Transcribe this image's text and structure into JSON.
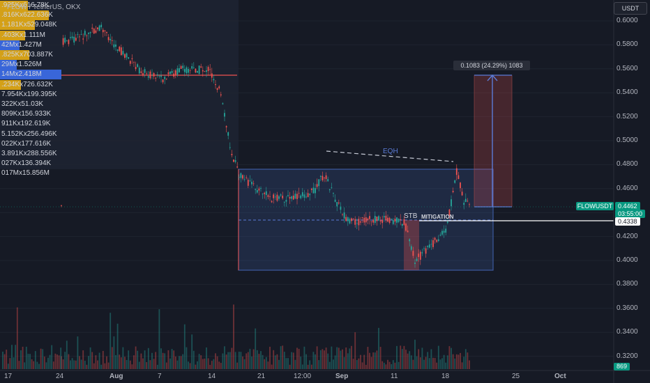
{
  "header": {
    "pair_label": "FLOW / TetherUS, OKX",
    "currency_button": "USDT"
  },
  "volume_profile": [
    {
      "text": ".925Kx616.78K",
      "color": "#d4a017"
    },
    {
      "text": ".816Kx622.636K",
      "color": "#d4a017"
    },
    {
      "text": "1.181Kx529.048K",
      "color": "#d4a017"
    },
    {
      "text": ".403Kx1.111M",
      "color": "#d4a017"
    },
    {
      "text": "42Mx1.427M",
      "color": "#3966d9"
    },
    {
      "text": ".825Kx703.887K",
      "color": "#d4a017"
    },
    {
      "text": "29Mx1.526M",
      "color": "#3966d9"
    },
    {
      "text": "14Mx2.418M",
      "color": "#3966d9"
    },
    {
      "text": ".234Kx726.632K",
      "color": "#d4a017"
    },
    {
      "text": "7.954Kx199.395K",
      "color": "#2a2e39"
    },
    {
      "text": "322Kx51.03K",
      "color": "#2a2e39"
    },
    {
      "text": "809Kx156.933K",
      "color": "#2a2e39"
    },
    {
      "text": "911Kx192.619K",
      "color": "#2a2e39"
    },
    {
      "text": "5.152Kx256.496K",
      "color": "#2a2e39"
    },
    {
      "text": "022Kx177.616K",
      "color": "#2a2e39"
    },
    {
      "text": "3.891Kx288.556K",
      "color": "#2a2e39"
    },
    {
      "text": "027Kx136.394K",
      "color": "#2a2e39"
    },
    {
      "text": "017Mx15.856M",
      "color": "#2a2e39"
    }
  ],
  "price_axis": {
    "ticks": [
      "0.6000",
      "0.5800",
      "0.5600",
      "0.5400",
      "0.5200",
      "0.5000",
      "0.4800",
      "0.4600",
      "0.4400",
      "0.4200",
      "0.4000",
      "0.3800",
      "0.3600",
      "0.3400",
      "0.3200"
    ],
    "last_price": "0.4462",
    "countdown": "03:55:00",
    "level_price": "0.4338",
    "symbol_tag": "FLOWUSDT",
    "volume_value": "869"
  },
  "time_axis": {
    "ticks": [
      "17",
      "24",
      "Aug",
      "7",
      "14",
      "21",
      "12:00",
      "Sep",
      "11",
      "18",
      "25",
      "Oct"
    ]
  },
  "annotations": {
    "measure": "0.1083 (24.29%) 1083",
    "eqh": "EQH",
    "stb": "STB",
    "mitigation": "MITIGATION"
  },
  "colors": {
    "background": "#161a25",
    "up": "#26a69a",
    "down": "#ef5350",
    "range_box": "#3d5a9e",
    "level_line": "#ffffff"
  }
}
